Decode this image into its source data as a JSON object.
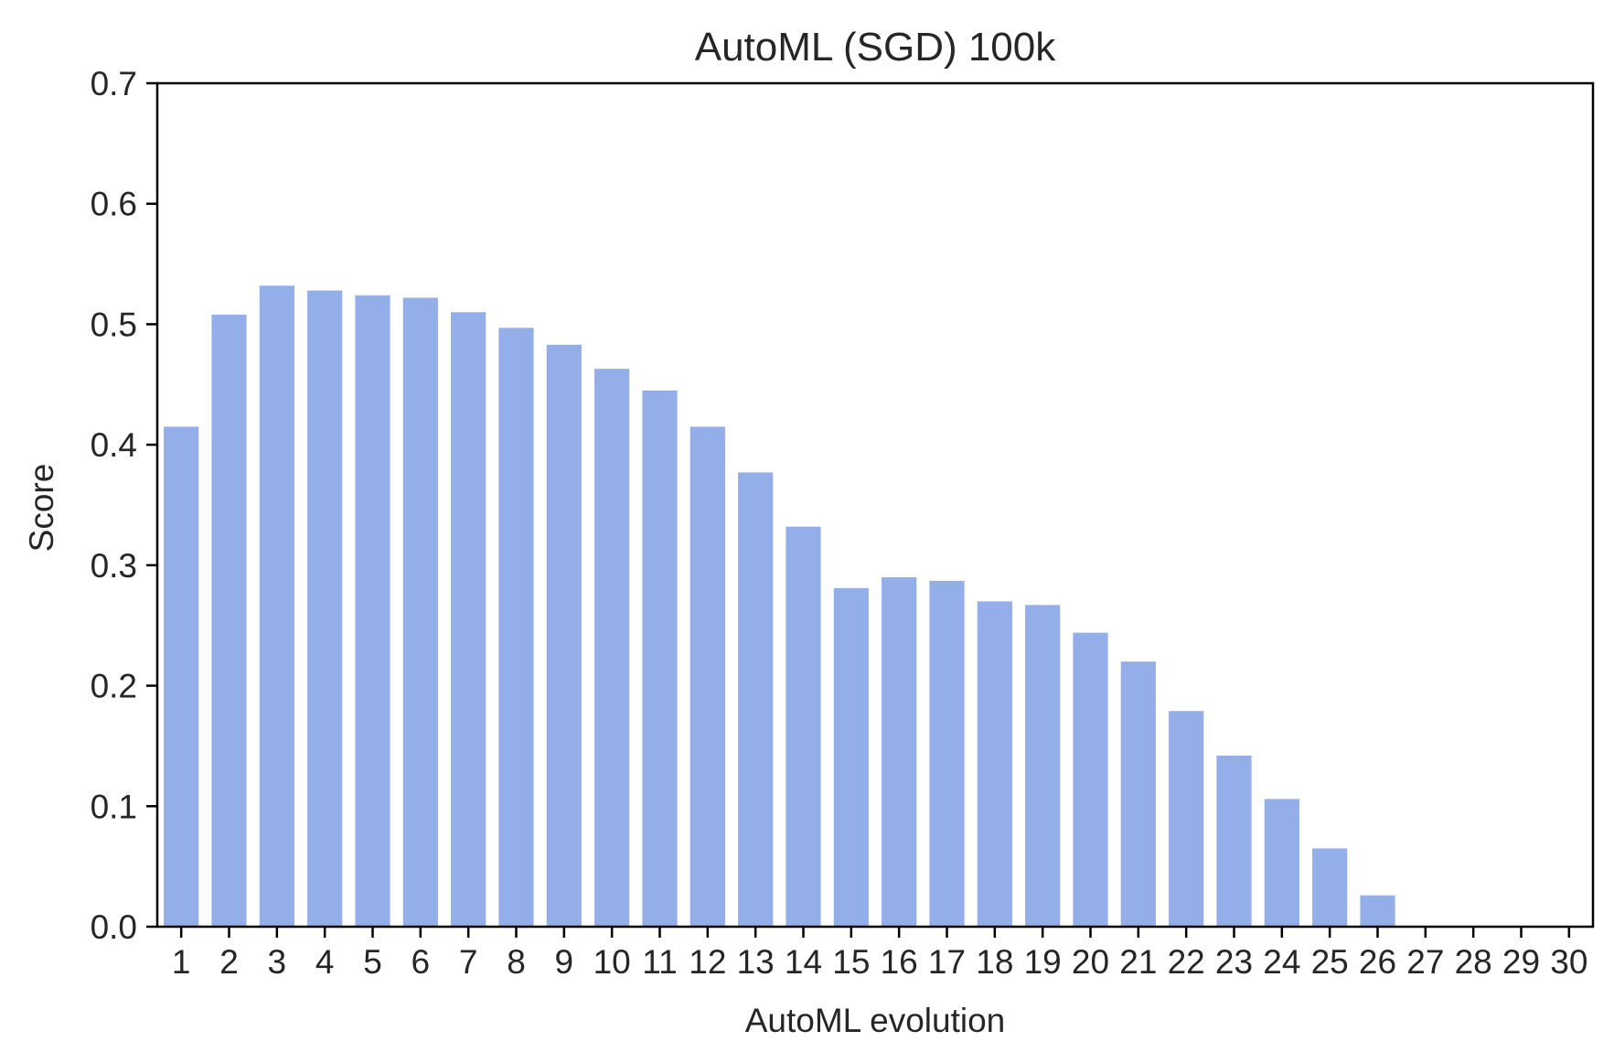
{
  "chart_data": {
    "type": "bar",
    "title": "AutoML (SGD) 100k",
    "xlabel": "AutoML evolution",
    "ylabel": "Score",
    "ylim": [
      0.0,
      0.7
    ],
    "yticks": [
      "0.0",
      "0.1",
      "0.2",
      "0.3",
      "0.4",
      "0.5",
      "0.6",
      "0.7"
    ],
    "categories": [
      "1",
      "2",
      "3",
      "4",
      "5",
      "6",
      "7",
      "8",
      "9",
      "10",
      "11",
      "12",
      "13",
      "14",
      "15",
      "16",
      "17",
      "18",
      "19",
      "20",
      "21",
      "22",
      "23",
      "24",
      "25",
      "26",
      "27",
      "28",
      "29",
      "30"
    ],
    "values": [
      0.415,
      0.508,
      0.532,
      0.528,
      0.524,
      0.522,
      0.51,
      0.497,
      0.483,
      0.463,
      0.445,
      0.415,
      0.377,
      0.332,
      0.281,
      0.29,
      0.287,
      0.27,
      0.267,
      0.244,
      0.22,
      0.179,
      0.142,
      0.106,
      0.065,
      0.026,
      0.0,
      0.0,
      0.0,
      0.0
    ],
    "bar_color": "#93aee9",
    "grid": false,
    "legend": "none"
  }
}
